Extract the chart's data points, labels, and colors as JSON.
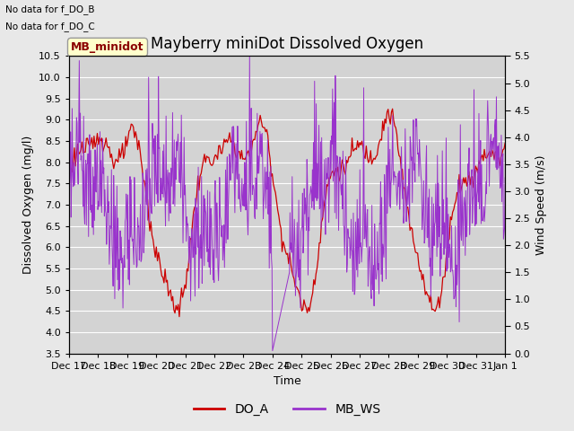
{
  "title": "Mayberry miniDot Dissolved Oxygen",
  "xlabel": "Time",
  "ylabel_left": "Dissolved Oxygen (mg/l)",
  "ylabel_right": "Wind Speed (m/s)",
  "text_no_data": [
    "No data for f_DO_B",
    "No data for f_DO_C"
  ],
  "legend_box_label": "MB_minidot",
  "legend_entries": [
    "DO_A",
    "MB_WS"
  ],
  "do_color": "#cc0000",
  "ws_color": "#9933cc",
  "background_color": "#e8e8e8",
  "plot_bg_color": "#d3d3d3",
  "grid_color": "#ffffff",
  "title_fontsize": 12,
  "label_fontsize": 9,
  "tick_fontsize": 8,
  "xtick_labels": [
    "Dec 17",
    "Dec 18",
    "Dec 19",
    "Dec 20",
    "Dec 21",
    "Dec 22",
    "Dec 23",
    "Dec 24",
    "Dec 25",
    "Dec 26",
    "Dec 27",
    "Dec 28",
    "Dec 29",
    "Dec 30",
    "Dec 31",
    "Jan 1"
  ],
  "ylim_left": [
    3.5,
    10.5
  ],
  "ylim_right": [
    0.0,
    5.5
  ],
  "yticks_left": [
    3.5,
    4.0,
    4.5,
    5.0,
    5.5,
    6.0,
    6.5,
    7.0,
    7.5,
    8.0,
    8.5,
    9.0,
    9.5,
    10.0,
    10.5
  ],
  "yticks_right": [
    0.0,
    0.5,
    1.0,
    1.5,
    2.0,
    2.5,
    3.0,
    3.5,
    4.0,
    4.5,
    5.0,
    5.5
  ],
  "n_points_do": 400,
  "n_points_ws": 800
}
